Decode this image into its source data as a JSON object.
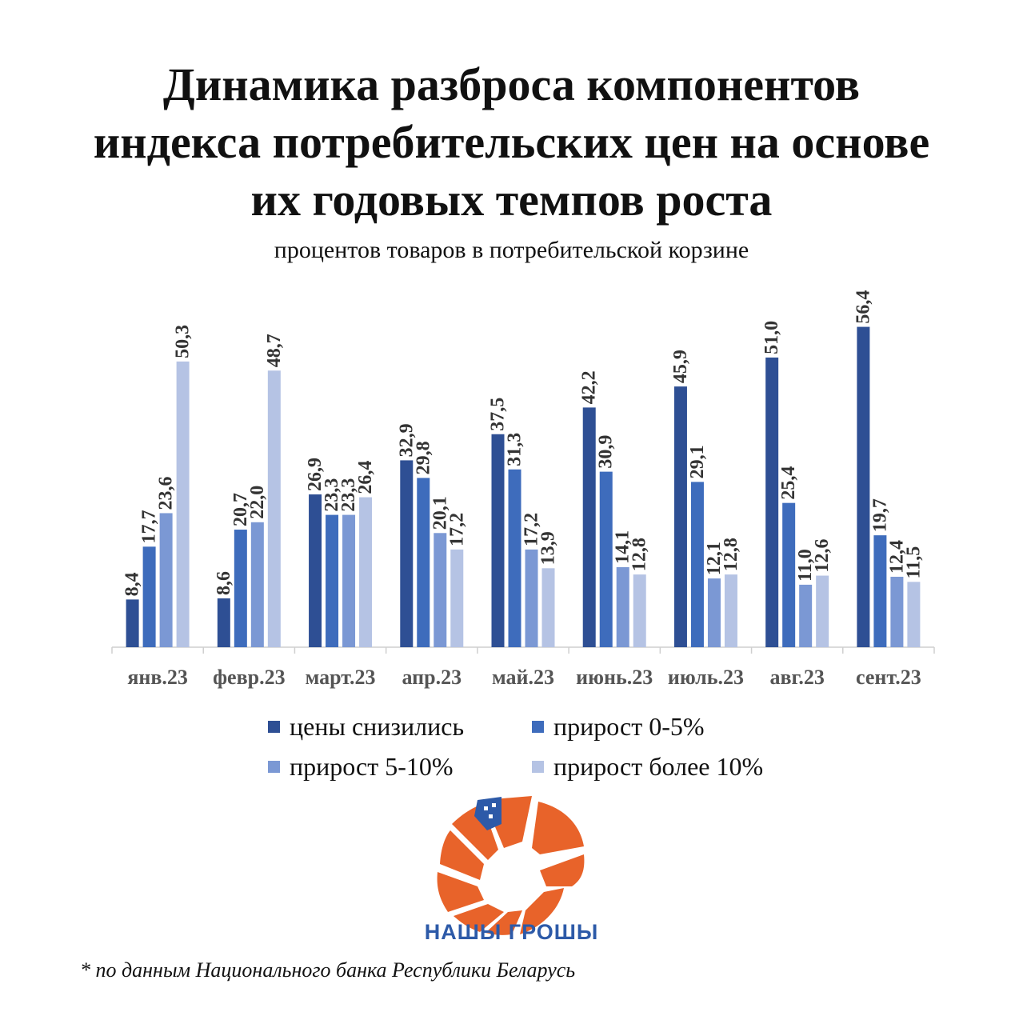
{
  "title_lines": [
    "Динамика разброса компонентов",
    "индекса потребительских цен на основе",
    "их годовых темпов роста"
  ],
  "subtitle": "процентов товаров в потребительской корзине",
  "logo": {
    "text": "НАШЫ ГРОШЫ",
    "color_orange": "#e8632a",
    "color_blue": "#2d5aa8"
  },
  "source": "* по данным Национального банка Республики Беларусь",
  "chart_data": {
    "type": "bar",
    "categories": [
      "янв.23",
      "февр.23",
      "март.23",
      "апр.23",
      "май.23",
      "июнь.23",
      "июль.23",
      "авг.23",
      "сент.23"
    ],
    "series": [
      {
        "name": "цены снизились",
        "color": "#2e4f94",
        "values": [
          8.4,
          8.6,
          26.9,
          32.9,
          37.5,
          42.2,
          45.9,
          51.0,
          56.4
        ],
        "labels": [
          "8,4",
          "8,6",
          "26,9",
          "32,9",
          "37,5",
          "42,2",
          "45,9",
          "51,0",
          "56,4"
        ]
      },
      {
        "name": "прирост 0-5%",
        "color": "#3e6cbc",
        "values": [
          17.7,
          20.7,
          23.3,
          29.8,
          31.3,
          30.9,
          29.1,
          25.4,
          19.7
        ],
        "labels": [
          "17,7",
          "20,7",
          "23,3",
          "29,8",
          "31,3",
          "30,9",
          "29,1",
          "25,4",
          "19,7"
        ]
      },
      {
        "name": "прирост 5-10%",
        "color": "#7b98d4",
        "values": [
          23.6,
          22.0,
          23.3,
          20.1,
          17.2,
          14.1,
          12.1,
          11.0,
          12.4
        ],
        "labels": [
          "23,6",
          "22,0",
          "23,3",
          "20,1",
          "17,2",
          "14,1",
          "12,1",
          "11,0",
          "12,4"
        ]
      },
      {
        "name": "прирост более 10%",
        "color": "#b5c3e4",
        "values": [
          50.3,
          48.7,
          26.4,
          17.2,
          13.9,
          12.8,
          12.8,
          12.6,
          11.5
        ],
        "labels": [
          "50,3",
          "48,7",
          "26,4",
          "17,2",
          "13,9",
          "12,8",
          "12,8",
          "12,6",
          "11,5"
        ]
      }
    ],
    "ylim": [
      0,
      60
    ],
    "grid": false,
    "legend_position": "bottom"
  }
}
